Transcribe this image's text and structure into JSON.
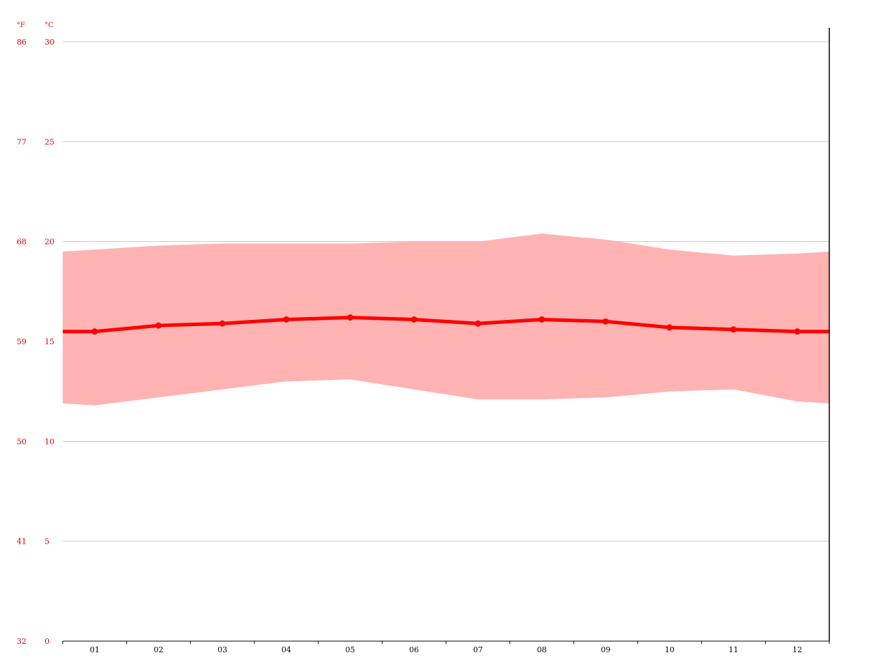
{
  "chart_data": {
    "type": "area",
    "categories": [
      "01",
      "02",
      "03",
      "04",
      "05",
      "06",
      "07",
      "08",
      "09",
      "10",
      "11",
      "12"
    ],
    "series": [
      {
        "role": "range-max",
        "values": [
          19.6,
          19.8,
          19.9,
          19.9,
          19.9,
          20.0,
          20.0,
          20.4,
          20.1,
          19.6,
          19.3,
          19.4
        ]
      },
      {
        "role": "average",
        "values": [
          15.5,
          15.8,
          15.9,
          16.1,
          16.2,
          16.1,
          15.9,
          16.1,
          16.0,
          15.7,
          15.6,
          15.5
        ]
      },
      {
        "role": "range-min",
        "values": [
          11.8,
          12.2,
          12.6,
          13.0,
          13.1,
          12.6,
          12.1,
          12.1,
          12.2,
          12.5,
          12.6,
          12.0
        ]
      }
    ],
    "range_edge_values": {
      "left_max": 19.5,
      "left_min": 11.9,
      "right_max": 19.5,
      "right_min": 11.9
    },
    "average_edge_values": {
      "left": 15.5,
      "right": 15.5
    },
    "y_axis_celsius": {
      "unit": "°C",
      "ticks": [
        0,
        5,
        10,
        15,
        20,
        25,
        30
      ],
      "tick_labels": [
        "0",
        "5",
        "10",
        "15",
        "20",
        "25",
        "30"
      ],
      "ylim": [
        0,
        30
      ]
    },
    "y_axis_fahrenheit": {
      "unit": "°F",
      "tick_labels": [
        "32",
        "41",
        "50",
        "59",
        "68",
        "77",
        "86"
      ]
    },
    "x_tick_labels": [
      "01",
      "02",
      "03",
      "04",
      "05",
      "06",
      "07",
      "08",
      "09",
      "10",
      "11",
      "12"
    ],
    "grid": true,
    "legend": "none",
    "colors": {
      "line": "#ff0000",
      "range_fill": "#ffb3b3",
      "axis_text": "#e00000",
      "grid": "#c8c8c8",
      "axis": "#000000"
    }
  }
}
